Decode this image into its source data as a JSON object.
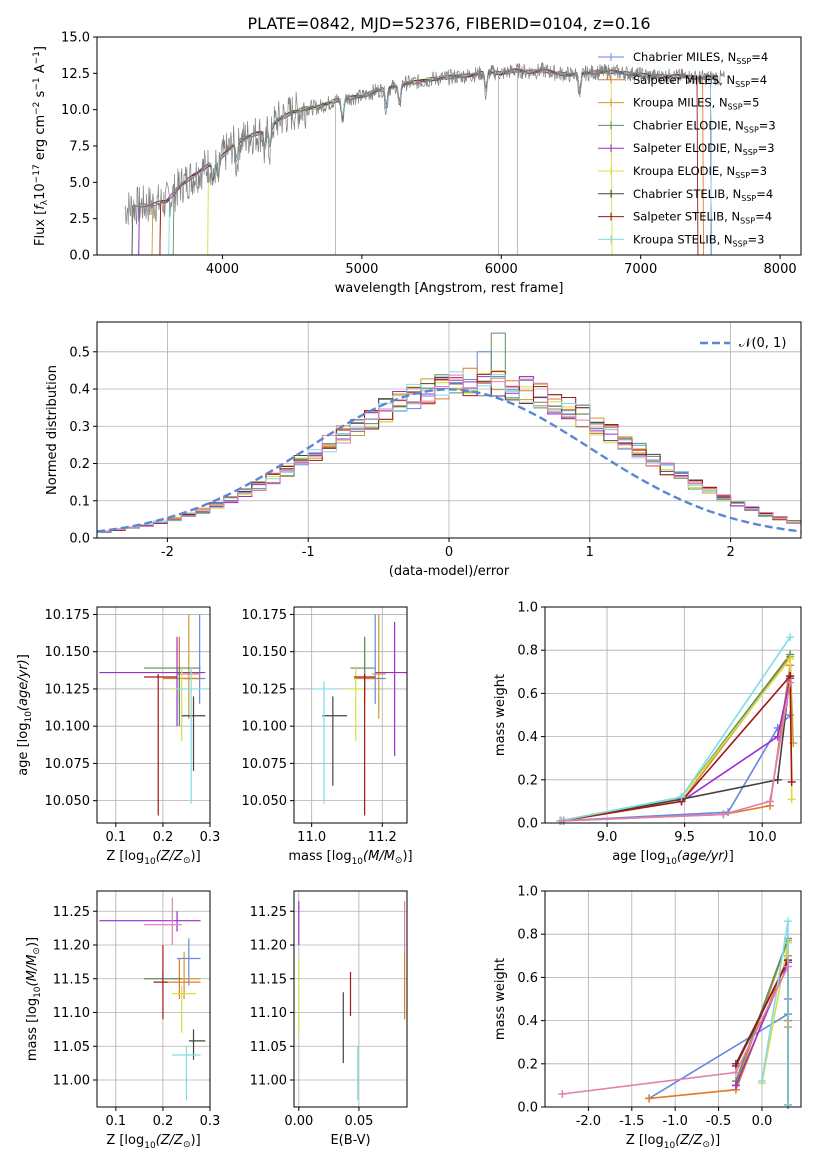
{
  "figure_title": "PLATE=0842, MJD=52376, FIBERID=0104, z=0.16",
  "models": [
    {
      "name": "Chabrier MILES, N_SSP=4",
      "label": "Chabrier MILES, N",
      "n": "4",
      "color": "#6688dd"
    },
    {
      "name": "Salpeter MILES, N_SSP=4",
      "label": "Salpeter MILES, N",
      "n": "4",
      "color": "#e07b2a"
    },
    {
      "name": "Kroupa MILES, N_SSP=5",
      "label": "Kroupa MILES, N",
      "n": "5",
      "color": "#d09a2a"
    },
    {
      "name": "Chabrier ELODIE, N_SSP=3",
      "label": "Chabrier ELODIE, N",
      "n": "3",
      "color": "#5e8e5e"
    },
    {
      "name": "Salpeter ELODIE, N_SSP=3",
      "label": "Salpeter ELODIE, N",
      "n": "3",
      "color": "#9b2fd0"
    },
    {
      "name": "Kroupa ELODIE, N_SSP=3",
      "label": "Kroupa ELODIE, N",
      "n": "3",
      "color": "#d8dc44"
    },
    {
      "name": "Chabrier STELIB, N_SSP=4",
      "label": "Chabrier STELIB, N",
      "n": "4",
      "color": "#444444"
    },
    {
      "name": "Salpeter STELIB, N_SSP=4",
      "label": "Salpeter STELIB, N",
      "n": "4",
      "color": "#a01818"
    },
    {
      "name": "Kroupa STELIB, N_SSP=3",
      "label": "Kroupa STELIB, N",
      "n": "3",
      "color": "#80dce8"
    }
  ],
  "legend_sub": "SSP",
  "pink_color": "#e080b0",
  "chart_data": [
    {
      "type": "line",
      "id": "spectrum",
      "xlabel": "wavelength [Angstrom, rest frame]",
      "ylabel": "Flux [f_λ 10^-17 erg cm^-2 s^-1 A^-1]",
      "xlim": [
        3100,
        8150
      ],
      "ylim": [
        0,
        15
      ],
      "xticks": [
        4000,
        5000,
        6000,
        7000,
        8000
      ],
      "yticks": [
        0.0,
        2.5,
        5.0,
        7.5,
        10.0,
        12.5,
        15.0
      ],
      "legend_position": "right",
      "data_color": "#808080",
      "continuum": [
        [
          3300,
          3.2
        ],
        [
          3400,
          3.4
        ],
        [
          3500,
          3.5
        ],
        [
          3600,
          3.7
        ],
        [
          3700,
          4.8
        ],
        [
          3800,
          5.5
        ],
        [
          3900,
          6.2
        ],
        [
          4000,
          6.8
        ],
        [
          4100,
          7.8
        ],
        [
          4200,
          8.2
        ],
        [
          4300,
          8.5
        ],
        [
          4400,
          9.3
        ],
        [
          4500,
          9.8
        ],
        [
          4600,
          10.1
        ],
        [
          4700,
          10.2
        ],
        [
          4800,
          10.6
        ],
        [
          4900,
          10.8
        ],
        [
          5000,
          10.9
        ],
        [
          5100,
          11.3
        ],
        [
          5200,
          11.5
        ],
        [
          5300,
          11.8
        ],
        [
          5400,
          11.9
        ],
        [
          5500,
          12.1
        ],
        [
          5600,
          12.2
        ],
        [
          5700,
          12.3
        ],
        [
          5800,
          12.4
        ],
        [
          5900,
          12.6
        ],
        [
          6000,
          12.5
        ],
        [
          6100,
          12.7
        ],
        [
          6200,
          12.6
        ],
        [
          6300,
          12.7
        ],
        [
          6400,
          12.5
        ],
        [
          6500,
          12.4
        ],
        [
          6600,
          12.5
        ],
        [
          6700,
          12.6
        ],
        [
          6800,
          12.6
        ],
        [
          6900,
          12.5
        ],
        [
          7000,
          12.4
        ],
        [
          7100,
          12.3
        ],
        [
          7200,
          12.3
        ],
        [
          7300,
          12.3
        ],
        [
          7400,
          12.2
        ],
        [
          7500,
          12.2
        ]
      ],
      "absorption_lines": [
        3934,
        3969,
        4102,
        4304,
        4341,
        4861,
        5175,
        5270,
        5890,
        6563
      ],
      "drop_lines": [
        4810,
        5980,
        6115
      ]
    },
    {
      "type": "bar",
      "id": "residuals",
      "xlabel": "(data-model)/error",
      "ylabel": "Normed distribution",
      "xlim": [
        -2.5,
        2.5
      ],
      "ylim": [
        0,
        0.58
      ],
      "xticks": [
        -2,
        -1,
        0,
        1,
        2
      ],
      "yticks": [
        0.0,
        0.1,
        0.2,
        0.3,
        0.4,
        0.5
      ],
      "bin_width": 0.1,
      "reference": {
        "label": "𝒩(0, 1)",
        "mean": 0,
        "sigma": 1
      }
    },
    {
      "type": "scatter",
      "id": "age_vs_Z",
      "xlabel": "Z [log10(Z/Z⊙)]",
      "ylabel": "age [log10(age/yr)]",
      "xlim": [
        0.06,
        0.3
      ],
      "ylim": [
        10.035,
        10.18
      ],
      "xticks": [
        0.1,
        0.2,
        0.3
      ],
      "yticks": [
        10.05,
        10.075,
        10.1,
        10.125,
        10.15,
        10.175
      ],
      "points": [
        {
          "m": 0,
          "x": 0.278,
          "y": 10.132,
          "xe": [
            0.245,
            0.29
          ],
          "ye": [
            10.115,
            10.175
          ]
        },
        {
          "m": 1,
          "x": 0.235,
          "y": 10.132,
          "xe": [
            0.2,
            0.28
          ],
          "ye": [
            10.115,
            10.16
          ]
        },
        {
          "m": 2,
          "x": 0.255,
          "y": 10.135,
          "xe": [
            0.23,
            0.28
          ],
          "ye": [
            10.105,
            10.175
          ]
        },
        {
          "m": 3,
          "x": 0.235,
          "y": 10.139,
          "xe": [
            0.16,
            0.28
          ],
          "ye": [
            10.1,
            10.14
          ]
        },
        {
          "m": 4,
          "x": 0.23,
          "y": 10.136,
          "xe": [
            0.065,
            0.29
          ],
          "ye": [
            10.1,
            10.16
          ]
        },
        {
          "m": 5,
          "x": 0.24,
          "y": 10.125,
          "xe": [
            0.22,
            0.26
          ],
          "ye": [
            10.09,
            10.14
          ]
        },
        {
          "m": 6,
          "x": 0.265,
          "y": 10.107,
          "xe": [
            0.24,
            0.29
          ],
          "ye": [
            10.07,
            10.12
          ]
        },
        {
          "m": 7,
          "x": 0.19,
          "y": 10.133,
          "xe": [
            0.16,
            0.23
          ],
          "ye": [
            10.04,
            10.135
          ]
        },
        {
          "m": 8,
          "x": 0.26,
          "y": 10.125,
          "xe": [
            0.23,
            0.29
          ],
          "ye": [
            10.048,
            10.14
          ]
        }
      ]
    },
    {
      "type": "scatter",
      "id": "age_vs_mass",
      "xlabel": "mass [log10(M/M⊙)]",
      "ylabel": "",
      "xlim": [
        10.95,
        11.27
      ],
      "ylim": [
        10.035,
        10.18
      ],
      "xticks": [
        11.0,
        11.2
      ],
      "yticks": [
        10.05,
        10.075,
        10.1,
        10.125,
        10.15,
        10.175
      ],
      "points": [
        {
          "m": 0,
          "x": 11.18,
          "y": 10.132,
          "xe": [
            11.15,
            11.21
          ],
          "ye": [
            10.115,
            10.175
          ]
        },
        {
          "m": 1,
          "x": 11.15,
          "y": 10.132,
          "xe": [
            11.12,
            11.18
          ],
          "ye": [
            10.115,
            10.16
          ]
        },
        {
          "m": 2,
          "x": 11.19,
          "y": 10.135,
          "xe": [
            11.17,
            11.21
          ],
          "ye": [
            10.105,
            10.175
          ]
        },
        {
          "m": 3,
          "x": 11.15,
          "y": 10.139,
          "xe": [
            11.11,
            11.18
          ],
          "ye": [
            10.12,
            10.16
          ]
        },
        {
          "m": 4,
          "x": 11.235,
          "y": 10.136,
          "xe": [
            11.18,
            11.27
          ],
          "ye": [
            10.08,
            10.17
          ]
        },
        {
          "m": 5,
          "x": 11.125,
          "y": 10.125,
          "xe": [
            11.1,
            11.15
          ],
          "ye": [
            10.09,
            10.14
          ]
        },
        {
          "m": 6,
          "x": 11.06,
          "y": 10.107,
          "xe": [
            11.03,
            11.1
          ],
          "ye": [
            10.06,
            10.12
          ]
        },
        {
          "m": 7,
          "x": 11.15,
          "y": 10.133,
          "xe": [
            11.12,
            11.18
          ],
          "ye": [
            10.04,
            10.135
          ]
        },
        {
          "m": 8,
          "x": 11.035,
          "y": 10.125,
          "xe": [
            11.0,
            11.07
          ],
          "ye": [
            10.048,
            10.13
          ]
        }
      ]
    },
    {
      "type": "line",
      "id": "mass_weight_vs_age",
      "xlabel": "age [log10(age/yr)]",
      "ylabel": "mass weight",
      "xlim": [
        8.6,
        10.25
      ],
      "ylim": [
        0,
        1
      ],
      "xticks": [
        9.0,
        9.5,
        10.0
      ],
      "yticks": [
        0.0,
        0.2,
        0.4,
        0.6,
        0.8,
        1.0
      ],
      "series": [
        {
          "m": 0,
          "x": [
            8.7,
            9.78,
            10.1,
            10.18
          ],
          "y": [
            0.01,
            0.05,
            0.44,
            0.5
          ]
        },
        {
          "m": 1,
          "x": [
            8.72,
            9.75,
            10.05,
            10.18
          ],
          "y": [
            0.01,
            0.04,
            0.08,
            0.73
          ]
        },
        {
          "m": 2,
          "x": [
            8.72,
            9.48,
            10.18,
            10.2
          ],
          "y": [
            0.01,
            0.1,
            0.77,
            0.37
          ]
        },
        {
          "m": 3,
          "x": [
            8.7,
            9.48,
            10.18
          ],
          "y": [
            0.01,
            0.12,
            0.78
          ]
        },
        {
          "m": 4,
          "x": [
            9.48,
            10.1,
            10.18
          ],
          "y": [
            0.1,
            0.4,
            0.67
          ]
        },
        {
          "m": 5,
          "x": [
            8.7,
            9.48,
            10.18,
            10.19
          ],
          "y": [
            0.01,
            0.12,
            0.76,
            0.11
          ]
        },
        {
          "m": 6,
          "x": [
            8.7,
            9.48,
            10.1,
            10.18
          ],
          "y": [
            0.01,
            0.11,
            0.2,
            0.68
          ]
        },
        {
          "m": 7,
          "x": [
            8.7,
            9.48,
            10.18,
            10.19
          ],
          "y": [
            0.01,
            0.1,
            0.68,
            0.19
          ]
        },
        {
          "m": 8,
          "x": [
            8.7,
            9.48,
            10.18
          ],
          "y": [
            0.01,
            0.12,
            0.86
          ]
        },
        {
          "m": 9,
          "x": [
            8.72,
            9.75,
            10.05,
            10.18
          ],
          "y": [
            0.01,
            0.04,
            0.1,
            0.65
          ]
        }
      ]
    },
    {
      "type": "scatter",
      "id": "mass_vs_Z",
      "xlabel": "Z [log10(Z/Z⊙)]",
      "ylabel": "mass [log10(M/M⊙)]",
      "xlim": [
        0.06,
        0.3
      ],
      "ylim": [
        10.96,
        11.28
      ],
      "xticks": [
        0.1,
        0.2,
        0.3
      ],
      "yticks": [
        11.0,
        11.05,
        11.1,
        11.15,
        11.2,
        11.25
      ],
      "points": [
        {
          "m": 0,
          "x": 0.255,
          "y": 11.18,
          "xe": [
            0.23,
            0.28
          ],
          "ye": [
            11.14,
            11.21
          ]
        },
        {
          "m": 1,
          "x": 0.235,
          "y": 11.145,
          "xe": [
            0.2,
            0.28
          ],
          "ye": [
            11.12,
            11.18
          ]
        },
        {
          "m": 2,
          "x": 0.245,
          "y": 11.15,
          "xe": [
            0.22,
            0.28
          ],
          "ye": [
            11.12,
            11.19
          ]
        },
        {
          "m": 3,
          "x": 0.2,
          "y": 11.15,
          "xe": [
            0.16,
            0.24
          ],
          "ye": [
            11.14,
            11.16
          ]
        },
        {
          "m": 4,
          "x": 0.23,
          "y": 11.236,
          "xe": [
            0.065,
            0.28
          ],
          "ye": [
            11.22,
            11.25
          ]
        },
        {
          "m": 5,
          "x": 0.24,
          "y": 11.128,
          "xe": [
            0.22,
            0.27
          ],
          "ye": [
            11.07,
            11.14
          ]
        },
        {
          "m": 6,
          "x": 0.265,
          "y": 11.058,
          "xe": [
            0.255,
            0.29
          ],
          "ye": [
            11.03,
            11.075
          ]
        },
        {
          "m": 7,
          "x": 0.2,
          "y": 11.145,
          "xe": [
            0.18,
            0.21
          ],
          "ye": [
            11.09,
            11.2
          ]
        },
        {
          "m": 8,
          "x": 0.25,
          "y": 11.037,
          "xe": [
            0.22,
            0.28
          ],
          "ye": [
            10.97,
            11.05
          ]
        },
        {
          "m": 9,
          "x": 0.22,
          "y": 11.23,
          "xe": [
            0.16,
            0.24
          ],
          "ye": [
            11.2,
            11.27
          ]
        }
      ]
    },
    {
      "type": "scatter",
      "id": "mass_vs_EBV",
      "xlabel": "E(B-V)",
      "ylabel": "",
      "xlim": [
        -0.004,
        0.09
      ],
      "ylim": [
        10.96,
        11.28
      ],
      "xticks": [
        0.0,
        0.05
      ],
      "yticks": [
        11.0,
        11.05,
        11.1,
        11.15,
        11.2,
        11.25
      ],
      "points": [
        {
          "m": 4,
          "x": 0.0,
          "y": 11.236,
          "ye": [
            11.2,
            11.265
          ]
        },
        {
          "m": 5,
          "x": 0.0,
          "y": 11.128,
          "ye": [
            11.07,
            11.18
          ]
        },
        {
          "m": 6,
          "x": 0.037,
          "y": 11.08,
          "ye": [
            11.025,
            11.13
          ]
        },
        {
          "m": 7,
          "x": 0.043,
          "y": 11.128,
          "ye": [
            11.095,
            11.16
          ]
        },
        {
          "m": 8,
          "x": 0.049,
          "y": 11.03,
          "ye": [
            10.97,
            11.05
          ]
        },
        {
          "m": 9,
          "x": 0.088,
          "y": 11.23,
          "ye": [
            11.19,
            11.265
          ]
        },
        {
          "m": 1,
          "x": 0.088,
          "y": 11.13,
          "ye": [
            11.09,
            11.19
          ]
        }
      ]
    },
    {
      "type": "line",
      "id": "mass_weight_vs_Z",
      "xlabel": "Z [log10(Z/Z⊙)]",
      "ylabel": "mass weight",
      "xlim": [
        -2.5,
        0.45
      ],
      "ylim": [
        0,
        1
      ],
      "xticks": [
        -2.0,
        -1.5,
        -1.0,
        -0.5,
        0.0
      ],
      "yticks": [
        0.0,
        0.2,
        0.4,
        0.6,
        0.8,
        1.0
      ],
      "series": [
        {
          "m": 0,
          "x": [
            -1.3,
            0.3,
            0.3
          ],
          "y": [
            0.04,
            0.43,
            0.5
          ]
        },
        {
          "m": 1,
          "x": [
            -1.3,
            -0.3,
            0.3,
            0.3
          ],
          "y": [
            0.04,
            0.08,
            0.7,
            0.4
          ]
        },
        {
          "m": 2,
          "x": [
            -0.3,
            0.3,
            0.3
          ],
          "y": [
            0.1,
            0.77,
            0.37
          ]
        },
        {
          "m": 3,
          "x": [
            -0.3,
            0.3,
            0.3
          ],
          "y": [
            0.12,
            0.78,
            0.01
          ]
        },
        {
          "m": 4,
          "x": [
            -0.3,
            0.3,
            0.3
          ],
          "y": [
            0.1,
            0.67,
            0.01
          ]
        },
        {
          "m": 5,
          "x": [
            0.0,
            0.3,
            0.3
          ],
          "y": [
            0.11,
            0.76,
            0.01
          ]
        },
        {
          "m": 6,
          "x": [
            -0.3,
            0.3,
            0.3
          ],
          "y": [
            0.2,
            0.68,
            0.01
          ]
        },
        {
          "m": 7,
          "x": [
            -0.3,
            0.3,
            0.3
          ],
          "y": [
            0.19,
            0.68,
            0.01
          ]
        },
        {
          "m": 8,
          "x": [
            0.0,
            0.3,
            0.3
          ],
          "y": [
            0.12,
            0.86,
            0.01
          ]
        },
        {
          "m": 9,
          "x": [
            -2.3,
            -0.3,
            0.3
          ],
          "y": [
            0.06,
            0.16,
            0.65
          ]
        }
      ]
    }
  ]
}
